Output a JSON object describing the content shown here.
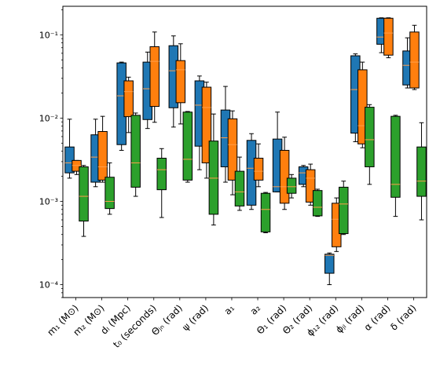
{
  "chart_data": {
    "type": "box",
    "title": "",
    "xlabel": "",
    "ylabel": "",
    "yscale": "log",
    "ylim": [
      7e-05,
      0.22
    ],
    "y_ticks": [
      {
        "value": 0.0001,
        "label": "10⁻⁴"
      },
      {
        "value": 0.001,
        "label": "10⁻³"
      },
      {
        "value": 0.01,
        "label": "10⁻²"
      },
      {
        "value": 0.1,
        "label": "10⁻¹"
      }
    ],
    "categories": [
      "m₁ (M⊙)",
      "m₂ (M⊙)",
      "dₗ (Mpc)",
      "t₀ (seconds)",
      "Θⱼₙ (rad)",
      "ψ (rad)",
      "a₁",
      "a₂",
      "Θ₁ (rad)",
      "Θ₂ (rad)",
      "ϕ₁₂ (rad)",
      "ϕⱼₗ (rad)",
      "α (rad)",
      "δ (rad)"
    ],
    "series": [
      {
        "color": "#1f77b4",
        "boxes": [
          {
            "whislo": 0.0019,
            "q1": 0.0022,
            "med": 0.0029,
            "q3": 0.0045,
            "whishi": 0.0097
          },
          {
            "whislo": 0.0015,
            "q1": 0.0017,
            "med": 0.0034,
            "q3": 0.0063,
            "whishi": 0.0097
          },
          {
            "whislo": 0.0041,
            "q1": 0.0048,
            "med": 0.0185,
            "q3": 0.046,
            "whishi": 0.047
          },
          {
            "whislo": 0.0075,
            "q1": 0.0096,
            "med": 0.0225,
            "q3": 0.047,
            "whishi": 0.062
          },
          {
            "whislo": 0.0078,
            "q1": 0.0133,
            "med": 0.037,
            "q3": 0.074,
            "whishi": 0.097
          },
          {
            "whislo": 0.0024,
            "q1": 0.0046,
            "med": 0.0143,
            "q3": 0.028,
            "whishi": 0.032
          },
          {
            "whislo": 0.0017,
            "q1": 0.0026,
            "med": 0.0058,
            "q3": 0.0125,
            "whishi": 0.024
          },
          {
            "whislo": 0.0008,
            "q1": 0.0009,
            "med": 0.0025,
            "q3": 0.0054,
            "whishi": 0.0065
          },
          {
            "whislo": 0.0013,
            "q1": 0.0013,
            "med": 0.0015,
            "q3": 0.0056,
            "whishi": 0.0118
          },
          {
            "whislo": 0.0015,
            "q1": 0.0016,
            "med": 0.0022,
            "q3": 0.0026,
            "whishi": 0.0027
          },
          {
            "whislo": 0.0001,
            "q1": 0.000137,
            "med": 0.000225,
            "q3": 0.000232,
            "whishi": 0.00024
          },
          {
            "whislo": 0.0052,
            "q1": 0.0066,
            "med": 0.022,
            "q3": 0.056,
            "whishi": 0.059
          },
          {
            "whislo": 0.061,
            "q1": 0.077,
            "med": 0.094,
            "q3": 0.158,
            "whishi": 0.16
          },
          {
            "whislo": 0.023,
            "q1": 0.025,
            "med": 0.043,
            "q3": 0.064,
            "whishi": 0.092
          }
        ]
      },
      {
        "color": "#ff7f0e",
        "boxes": [
          {
            "whislo": 0.0021,
            "q1": 0.0023,
            "med": 0.0027,
            "q3": 0.0031,
            "whishi": 0.0031
          },
          {
            "whislo": 0.0017,
            "q1": 0.0018,
            "med": 0.0026,
            "q3": 0.0069,
            "whishi": 0.0105
          },
          {
            "whislo": 0.0067,
            "q1": 0.0104,
            "med": 0.0208,
            "q3": 0.028,
            "whishi": 0.031
          },
          {
            "whislo": 0.0089,
            "q1": 0.0138,
            "med": 0.048,
            "q3": 0.072,
            "whishi": 0.108
          },
          {
            "whislo": 0.0085,
            "q1": 0.0153,
            "med": 0.038,
            "q3": 0.049,
            "whishi": 0.078
          },
          {
            "whislo": 0.0019,
            "q1": 0.0029,
            "med": 0.0134,
            "q3": 0.0235,
            "whishi": 0.027
          },
          {
            "whislo": 0.0012,
            "q1": 0.0018,
            "med": 0.0048,
            "q3": 0.0098,
            "whishi": 0.0122
          },
          {
            "whislo": 0.0015,
            "q1": 0.0018,
            "med": 0.0023,
            "q3": 0.0033,
            "whishi": 0.0049
          },
          {
            "whislo": 0.0008,
            "q1": 0.00095,
            "med": 0.0015,
            "q3": 0.0041,
            "whishi": 0.0059
          },
          {
            "whislo": 0.0009,
            "q1": 0.00098,
            "med": 0.0019,
            "q3": 0.0024,
            "whishi": 0.0028
          },
          {
            "whislo": 0.00025,
            "q1": 0.000285,
            "med": 0.00061,
            "q3": 0.00095,
            "whishi": 0.0011
          },
          {
            "whislo": 0.0044,
            "q1": 0.0049,
            "med": 0.0081,
            "q3": 0.038,
            "whishi": 0.047
          },
          {
            "whislo": 0.053,
            "q1": 0.057,
            "med": 0.105,
            "q3": 0.158,
            "whishi": 0.16
          },
          {
            "whislo": 0.022,
            "q1": 0.023,
            "med": 0.047,
            "q3": 0.108,
            "whishi": 0.13
          }
        ]
      },
      {
        "color": "#2ca02c",
        "boxes": [
          {
            "whislo": 0.00038,
            "q1": 0.00058,
            "med": 0.00115,
            "q3": 0.0026,
            "whishi": 0.0027
          },
          {
            "whislo": 0.0007,
            "q1": 0.00082,
            "med": 0.001,
            "q3": 0.00195,
            "whishi": 0.0029
          },
          {
            "whislo": 0.00115,
            "q1": 0.00148,
            "med": 0.0029,
            "q3": 0.0108,
            "whishi": 0.0115
          },
          {
            "whislo": 0.00064,
            "q1": 0.00138,
            "med": 0.0024,
            "q3": 0.0033,
            "whishi": 0.0043
          },
          {
            "whislo": 0.0017,
            "q1": 0.0018,
            "med": 0.0032,
            "q3": 0.0118,
            "whishi": 0.012
          },
          {
            "whislo": 0.00052,
            "q1": 0.0007,
            "med": 0.0019,
            "q3": 0.0053,
            "whishi": 0.0112
          },
          {
            "whislo": 0.00078,
            "q1": 0.00088,
            "med": 0.0013,
            "q3": 0.0023,
            "whishi": 0.0034
          },
          {
            "whislo": 0.00042,
            "q1": 0.00043,
            "med": 0.0008,
            "q3": 0.00125,
            "whishi": 0.00128
          },
          {
            "whislo": 0.0011,
            "q1": 0.00125,
            "med": 0.0015,
            "q3": 0.0019,
            "whishi": 0.0021
          },
          {
            "whislo": 0.00066,
            "q1": 0.00067,
            "med": 0.00085,
            "q3": 0.00135,
            "whishi": 0.0014
          },
          {
            "whislo": 0.0004,
            "q1": 0.00041,
            "med": 0.00093,
            "q3": 0.00148,
            "whishi": 0.00175
          },
          {
            "whislo": 0.0016,
            "q1": 0.0026,
            "med": 0.0055,
            "q3": 0.0135,
            "whishi": 0.0145
          },
          {
            "whislo": 0.00066,
            "q1": 0.00112,
            "med": 0.0016,
            "q3": 0.0105,
            "whishi": 0.0108
          },
          {
            "whislo": 0.0006,
            "q1": 0.00115,
            "med": 0.00175,
            "q3": 0.0045,
            "whishi": 0.0088
          }
        ]
      }
    ],
    "median_color": "#ff9e4a",
    "grid": false,
    "legend": "none"
  }
}
